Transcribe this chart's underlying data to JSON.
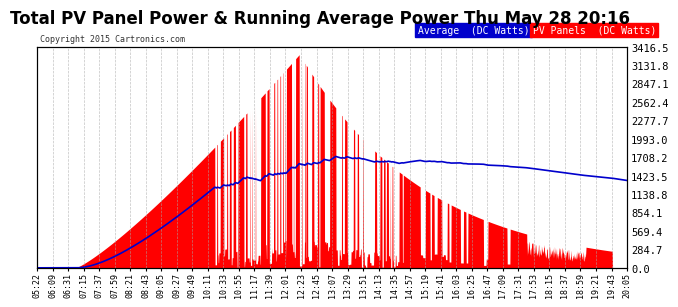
{
  "title": "Total PV Panel Power & Running Average Power Thu May 28 20:16",
  "copyright": "Copyright 2015 Cartronics.com",
  "legend_avg": "Average  (DC Watts)",
  "legend_pv": "PV Panels  (DC Watts)",
  "ylabel_right_ticks": [
    0.0,
    284.7,
    569.4,
    854.1,
    1138.8,
    1423.5,
    1708.2,
    1993.0,
    2277.7,
    2562.4,
    2847.1,
    3131.8,
    3416.5
  ],
  "ymax": 3416.5,
  "ymin": 0.0,
  "bg_color": "#ffffff",
  "plot_bg_color": "#ffffff",
  "grid_color": "#aaaaaa",
  "pv_color": "#ff0000",
  "avg_color": "#0000cc",
  "title_fontsize": 12,
  "x_labels": [
    "05:22",
    "06:09",
    "06:31",
    "07:15",
    "07:37",
    "07:59",
    "08:21",
    "08:43",
    "09:05",
    "09:27",
    "09:49",
    "10:11",
    "10:33",
    "10:55",
    "11:17",
    "11:39",
    "12:01",
    "12:23",
    "12:45",
    "13:07",
    "13:29",
    "13:51",
    "14:13",
    "14:35",
    "14:57",
    "15:19",
    "15:41",
    "16:03",
    "16:25",
    "16:47",
    "17:09",
    "17:31",
    "17:53",
    "18:15",
    "18:37",
    "18:59",
    "19:21",
    "19:43",
    "20:05"
  ]
}
